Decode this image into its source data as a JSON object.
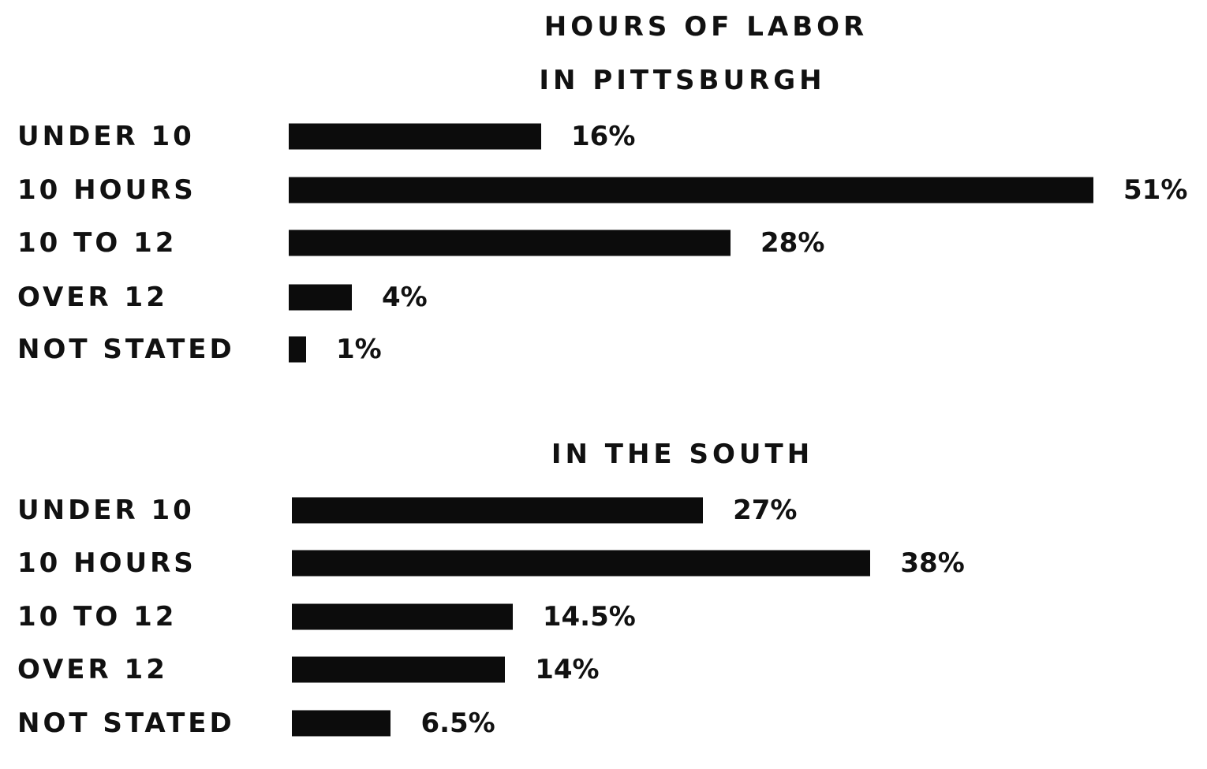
{
  "title": "HOURS OF LABOR",
  "chart_data": [
    {
      "type": "bar",
      "orientation": "horizontal",
      "title": "IN PITTSBURGH",
      "categories": [
        "UNDER 10",
        "10 HOURS",
        "10 TO 12",
        "OVER 12",
        "NOT STATED"
      ],
      "values": [
        16,
        51,
        28,
        4,
        1
      ],
      "data_labels": [
        "16%",
        "51%",
        "28%",
        "4%",
        "1%"
      ],
      "unit": "%",
      "grid": false,
      "bar_color": "#0c0c0c"
    },
    {
      "type": "bar",
      "orientation": "horizontal",
      "title": "IN THE SOUTH",
      "categories": [
        "UNDER 10",
        "10 HOURS",
        "10 TO 12",
        "OVER 12",
        "NOT STATED"
      ],
      "values": [
        27,
        38,
        14.5,
        14,
        6.5
      ],
      "data_labels": [
        "27%",
        "38%",
        "14.5%",
        "14%",
        "6.5%"
      ],
      "unit": "%",
      "grid": false,
      "bar_color": "#0c0c0c"
    }
  ]
}
